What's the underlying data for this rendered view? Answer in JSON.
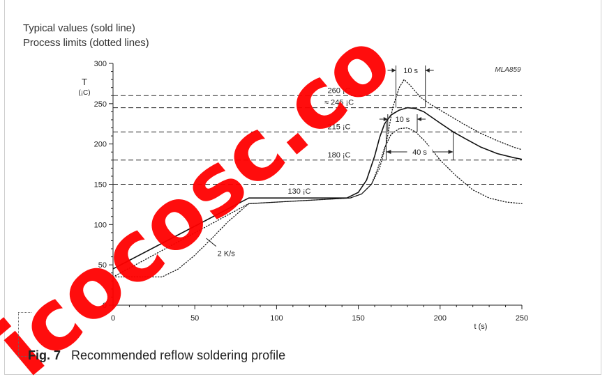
{
  "legend": {
    "typical": "Typical values (sold line)",
    "limits": "Process limits (dotted lines)"
  },
  "caption": {
    "label": "Fig. 7",
    "title": "Recommended reflow soldering profile"
  },
  "watermark": {
    "text": "icocosc.co",
    "color": "#ff0000"
  },
  "chart_data": {
    "type": "line",
    "code_label": "MLA859",
    "ylabel": "T",
    "ylabel_unit": "(¡C)",
    "xlabel": "t (s)",
    "xlim": [
      0,
      250
    ],
    "ylim": [
      0,
      300
    ],
    "x_ticks": [
      0,
      50,
      100,
      150,
      200,
      250
    ],
    "y_ticks": [
      0,
      50,
      100,
      150,
      200,
      250,
      300
    ],
    "grid": false,
    "reference_lines": [
      {
        "y": 260,
        "label": "260 ¡C"
      },
      {
        "y": 245,
        "label": "≈ 245 ¡C"
      },
      {
        "y": 215,
        "label": "215 ¡C"
      },
      {
        "y": 180,
        "label": "180 ¡C"
      },
      {
        "y": 150,
        "label": ""
      }
    ],
    "annotations": [
      {
        "text": "130 ¡C"
      },
      {
        "text": "2 K/s"
      },
      {
        "text": "10 s"
      },
      {
        "text": "10 s"
      },
      {
        "text": "40 s"
      }
    ],
    "series": [
      {
        "style": "solid",
        "x": [
          0,
          83,
          143,
          150,
          155,
          160,
          163,
          166,
          170,
          175,
          180,
          185,
          190,
          195,
          200,
          208,
          215,
          225,
          235,
          245,
          250
        ],
        "y": [
          45,
          133,
          133,
          140,
          155,
          185,
          208,
          225,
          236,
          242,
          245,
          244,
          240,
          233,
          226,
          215,
          207,
          196,
          188,
          183,
          181
        ]
      },
      {
        "style": "dotted",
        "x": [
          0,
          30,
          40,
          50,
          60,
          70,
          83,
          145,
          152,
          158,
          163,
          167,
          171,
          175,
          178,
          182,
          188,
          195,
          205,
          215,
          225,
          235,
          245,
          250
        ],
        "y": [
          35,
          35,
          45,
          62,
          82,
          103,
          126,
          133,
          138,
          150,
          170,
          200,
          245,
          270,
          280,
          272,
          258,
          248,
          236,
          224,
          213,
          204,
          196,
          193
        ]
      },
      {
        "style": "dotted",
        "x": [
          0,
          83,
          145,
          152,
          158,
          162,
          166,
          170,
          175,
          180,
          185,
          190,
          195,
          200,
          210,
          220,
          230,
          240,
          250
        ],
        "y": [
          35,
          126,
          133,
          138,
          150,
          170,
          195,
          212,
          219,
          220,
          215,
          205,
          193,
          180,
          160,
          143,
          133,
          128,
          126
        ]
      }
    ]
  }
}
